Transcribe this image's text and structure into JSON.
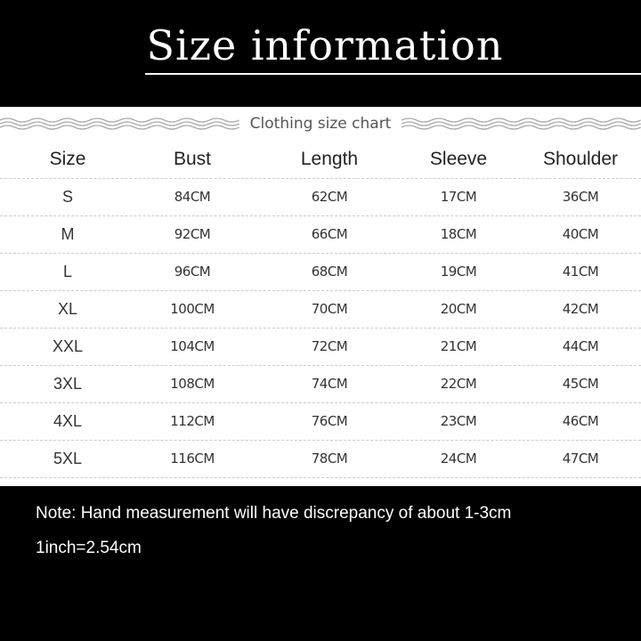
{
  "title": "Size information",
  "chart_caption": "Clothing size chart",
  "table": {
    "headers": [
      "Size",
      "Bust",
      "Length",
      "Sleeve",
      "Shoulder"
    ],
    "rows": [
      [
        "S",
        "84CM",
        "62CM",
        "17CM",
        "36CM"
      ],
      [
        "M",
        "92CM",
        "66CM",
        "18CM",
        "40CM"
      ],
      [
        "L",
        "96CM",
        "68CM",
        "19CM",
        "41CM"
      ],
      [
        "XL",
        "100CM",
        "70CM",
        "20CM",
        "42CM"
      ],
      [
        "XXL",
        "104CM",
        "72CM",
        "21CM",
        "44CM"
      ],
      [
        "3XL",
        "108CM",
        "74CM",
        "22CM",
        "45CM"
      ],
      [
        "4XL",
        "112CM",
        "76CM",
        "23CM",
        "46CM"
      ],
      [
        "5XL",
        "116CM",
        "78CM",
        "24CM",
        "47CM"
      ]
    ]
  },
  "notes": [
    "Note: Hand measurement will have discrepancy of about 1-3cm",
    "1inch=2.54cm"
  ]
}
